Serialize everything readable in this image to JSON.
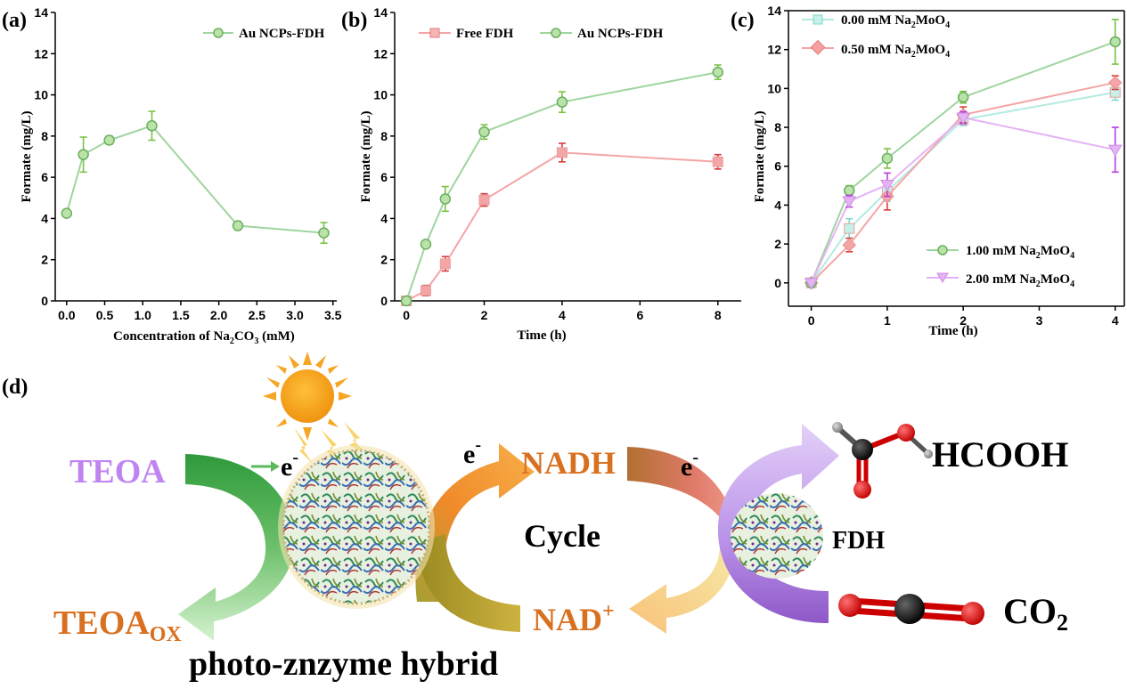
{
  "panels": {
    "a": "(a)",
    "b": "(b)",
    "c": "(c)",
    "d": "(d)"
  },
  "chart_data": [
    {
      "id": "a",
      "type": "line",
      "xlabel_main": "Concentration of Na",
      "xlabel_sub": "2",
      "xlabel_tail": "CO",
      "xlabel_sub2": "3",
      "xlabel_end": " (mM)",
      "ylabel": "Formate (mg/L)",
      "xlim": [
        -0.15,
        3.55
      ],
      "ylim": [
        0,
        14
      ],
      "xticks": [
        "0.0",
        "0.5",
        "1.0",
        "1.5",
        "2.0",
        "2.5",
        "3.0",
        "3.5"
      ],
      "xtick_values": [
        0,
        0.5,
        1,
        1.5,
        2,
        2.5,
        3,
        3.5
      ],
      "yticks": [
        "0",
        "2",
        "4",
        "6",
        "8",
        "10",
        "12",
        "14"
      ],
      "ytick_values": [
        0,
        2,
        4,
        6,
        8,
        10,
        12,
        14
      ],
      "legend_position": "top-right",
      "series": [
        {
          "name": "Au NCPs-FDH",
          "color": "#9fd59f",
          "marker": "circle",
          "err_color": "#7cc243",
          "x": [
            0,
            0.22,
            0.56,
            1.12,
            2.25,
            3.38
          ],
          "y": [
            4.25,
            7.1,
            7.8,
            8.5,
            3.65,
            3.3
          ],
          "err": [
            0.15,
            0.85,
            0.2,
            0.7,
            0.2,
            0.5
          ]
        }
      ]
    },
    {
      "id": "b",
      "type": "line",
      "xlabel": "Time (h)",
      "ylabel": "Formate (mg/L)",
      "xlim": [
        -0.3,
        8.6
      ],
      "ylim": [
        0,
        14
      ],
      "xticks": [
        "0",
        "2",
        "4",
        "6",
        "8"
      ],
      "xtick_values": [
        0,
        2,
        4,
        6,
        8
      ],
      "yticks": [
        "0",
        "2",
        "4",
        "6",
        "8",
        "10",
        "12",
        "14"
      ],
      "ytick_values": [
        0,
        2,
        4,
        6,
        8,
        10,
        12,
        14
      ],
      "legend_position": "top",
      "series": [
        {
          "name": "Free FDH",
          "color": "#f5a5a5",
          "marker": "square",
          "err_color": "#d93b3b",
          "x": [
            0,
            0.5,
            1,
            2,
            4,
            8
          ],
          "y": [
            0,
            0.5,
            1.8,
            4.9,
            7.2,
            6.75
          ],
          "err": [
            0.05,
            0.25,
            0.35,
            0.3,
            0.45,
            0.35
          ]
        },
        {
          "name": "Au NCPs-FDH",
          "color": "#9fd59f",
          "marker": "circle",
          "err_color": "#7cc243",
          "x": [
            0,
            0.5,
            1,
            2,
            4,
            8
          ],
          "y": [
            0,
            2.75,
            4.95,
            8.2,
            9.65,
            11.1
          ],
          "err": [
            0.05,
            0.15,
            0.6,
            0.35,
            0.5,
            0.35
          ]
        }
      ]
    },
    {
      "id": "c",
      "type": "line",
      "xlabel": "Time (h)",
      "ylabel": "Formate (mg/L)",
      "xlim": [
        -0.3,
        4.12
      ],
      "ylim": [
        -1.2,
        14
      ],
      "xticks": [
        "0",
        "1",
        "2",
        "3",
        "4"
      ],
      "xtick_values": [
        0,
        1,
        2,
        3,
        4
      ],
      "yticks": [
        "0",
        "2",
        "4",
        "6",
        "8",
        "10",
        "12",
        "14"
      ],
      "ytick_values": [
        0,
        2,
        4,
        6,
        8,
        10,
        12,
        14
      ],
      "series": [
        {
          "name": "0.00 mM Na",
          "sub": "2",
          "tail": "MoO",
          "sub2": "4",
          "color": "#b3ebe0",
          "marker": "square",
          "err_color": "#7fd6d0",
          "x": [
            0,
            0.5,
            1,
            2,
            4
          ],
          "y": [
            0,
            2.8,
            4.7,
            8.4,
            9.8
          ],
          "err": [
            0.05,
            0.5,
            0.5,
            0.3,
            0.4
          ]
        },
        {
          "name": "0.50 mM Na",
          "sub": "2",
          "tail": "MoO",
          "sub2": "4",
          "color": "#f5a5a5",
          "marker": "diamond",
          "err_color": "#d93b3b",
          "x": [
            0,
            0.5,
            1,
            2,
            4
          ],
          "y": [
            0,
            1.95,
            4.45,
            8.65,
            10.3
          ],
          "err": [
            0.05,
            0.35,
            0.7,
            0.4,
            0.35
          ]
        },
        {
          "name": "1.00 mM Na",
          "sub": "2",
          "tail": "MoO",
          "sub2": "4",
          "color": "#9fd59f",
          "marker": "circle",
          "err_color": "#7cc243",
          "x": [
            0,
            0.5,
            1,
            2,
            4
          ],
          "y": [
            0,
            4.75,
            6.4,
            9.55,
            12.4
          ],
          "err": [
            0.05,
            0.25,
            0.5,
            0.3,
            1.15
          ]
        },
        {
          "name": "2.00 mM Na",
          "sub": "2",
          "tail": "MoO",
          "sub2": "4",
          "color": "#e5b3f5",
          "marker": "triangle-down",
          "err_color": "#b63fe0",
          "x": [
            0,
            0.5,
            1,
            2,
            4
          ],
          "y": [
            0,
            4.2,
            5.05,
            8.5,
            6.85
          ],
          "err": [
            0.05,
            0.3,
            0.6,
            0.3,
            1.15
          ]
        }
      ]
    }
  ],
  "diagram": {
    "teoa": "TEOA",
    "teoa_ox_main": "TEOA",
    "teoa_ox_sub": "OX",
    "e_minus_1": "e",
    "e_minus_2": "e",
    "e_minus_3": "e",
    "minus": "-",
    "nadh": "NADH",
    "nad_main": "NAD",
    "nad_sup": "+",
    "cycle": "Cycle",
    "fdh": "FDH",
    "hcooh": "HCOOH",
    "co2_main": "CO",
    "co2_sub": "2",
    "hybrid": "photo-znzyme hybrid"
  },
  "colors": {
    "teoa": "#c084f0",
    "orange_text": "#d9701f",
    "sun": "#f5a623",
    "green_arrow": "#3aa64a",
    "orange_arrow": "#f28c28",
    "purple_arrow": "#c79cf0",
    "red_atom": "#e00000",
    "black_atom": "#111111"
  }
}
